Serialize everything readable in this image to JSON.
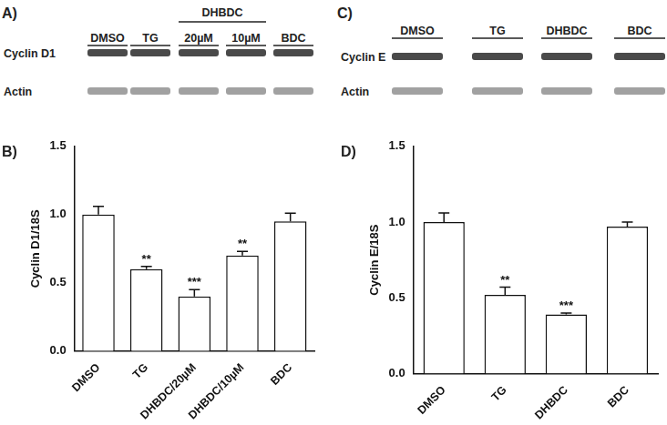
{
  "chart_data": [
    {
      "type": "bar",
      "title": "B)",
      "y_label": "Cyclin D1/18S",
      "categories": [
        "DMSO",
        "TG",
        "DHBDC/20µM",
        "DHBDC/10µM",
        "BDC"
      ],
      "values": [
        1.0,
        0.6,
        0.4,
        0.7,
        0.95
      ],
      "errors": [
        0.06,
        0.02,
        0.05,
        0.03,
        0.06
      ],
      "significance": [
        null,
        "**",
        "***",
        "**",
        null
      ],
      "color": "#ffffff",
      "ylim": [
        0,
        1.5
      ],
      "yticks": [
        {
          "value": 0,
          "label": "0.0"
        },
        0.5,
        {
          "value": 1,
          "label": "1.0"
        },
        1.5
      ],
      "grid": false
    },
    {
      "type": "bar",
      "title": "D)",
      "y_label": "Cyclin E/18S",
      "categories": [
        "DMSO",
        "TG",
        "DHBDC",
        "BDC"
      ],
      "values": [
        1.0,
        0.52,
        0.39,
        0.97
      ],
      "errors": [
        0.06,
        0.05,
        0.01,
        0.03
      ],
      "significance": [
        null,
        "**",
        "***",
        null
      ],
      "color": "#ffffff",
      "ylim": [
        0,
        1.5
      ],
      "yticks": [
        {
          "value": 0,
          "label": "0.0"
        },
        0.5,
        {
          "value": 1,
          "label": "1.0"
        },
        1.5
      ],
      "grid": false
    }
  ],
  "blots": [
    {
      "title": "A)",
      "rows": [
        "Cyclin D1",
        "Actin"
      ],
      "lanes": [
        "DMSO",
        "TG",
        {
          "label": "DHBDC",
          "lanes": [
            "20µM",
            "10µM"
          ]
        },
        "BDC"
      ]
    },
    {
      "title": "C)",
      "rows": [
        "Cyclin E",
        "Actin"
      ],
      "lanes": [
        "DMSO",
        "TG",
        "DHBDC",
        "BDC"
      ]
    }
  ]
}
